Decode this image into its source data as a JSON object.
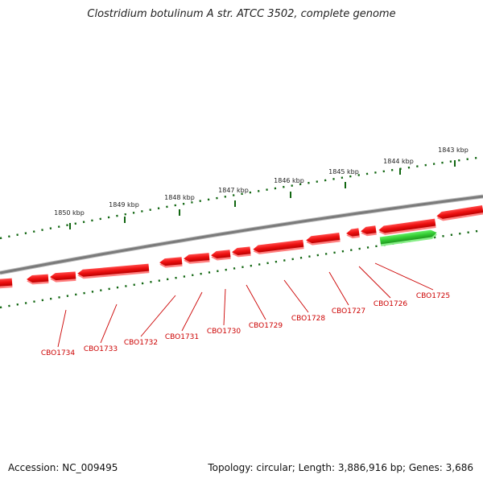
{
  "title": "Clostridium botulinum A str. ATCC 3502, complete genome",
  "footer": {
    "accession": "Accession: NC_009495",
    "summary": "Topology: circular; Length: 3,886,916 bp; Genes: 3,686"
  },
  "colors": {
    "backbone": "#888888",
    "reverse_gene": "#ee1111",
    "forward_gene": "#33cc33",
    "tick": "#116611",
    "label": "#cc0000"
  },
  "scale_ticks": [
    {
      "label": "1843 kbp"
    },
    {
      "label": "1844 kbp"
    },
    {
      "label": "1845 kbp"
    },
    {
      "label": "1846 kbp"
    },
    {
      "label": "1847 kbp"
    },
    {
      "label": "1848 kbp"
    },
    {
      "label": "1849 kbp"
    },
    {
      "label": "1850 kbp"
    }
  ],
  "genes": [
    {
      "id": "CBO1725",
      "strand": "-"
    },
    {
      "id": "CBO1726",
      "strand": "-"
    },
    {
      "id": "CBO1727",
      "strand": "-"
    },
    {
      "id": "CBO1728",
      "strand": "-"
    },
    {
      "id": "CBO1729",
      "strand": "-"
    },
    {
      "id": "CBO1730",
      "strand": "-"
    },
    {
      "id": "CBO1731",
      "strand": "-"
    },
    {
      "id": "CBO1732",
      "strand": "-"
    },
    {
      "id": "CBO1733",
      "strand": "-"
    },
    {
      "id": "CBO1734",
      "strand": "-"
    }
  ]
}
